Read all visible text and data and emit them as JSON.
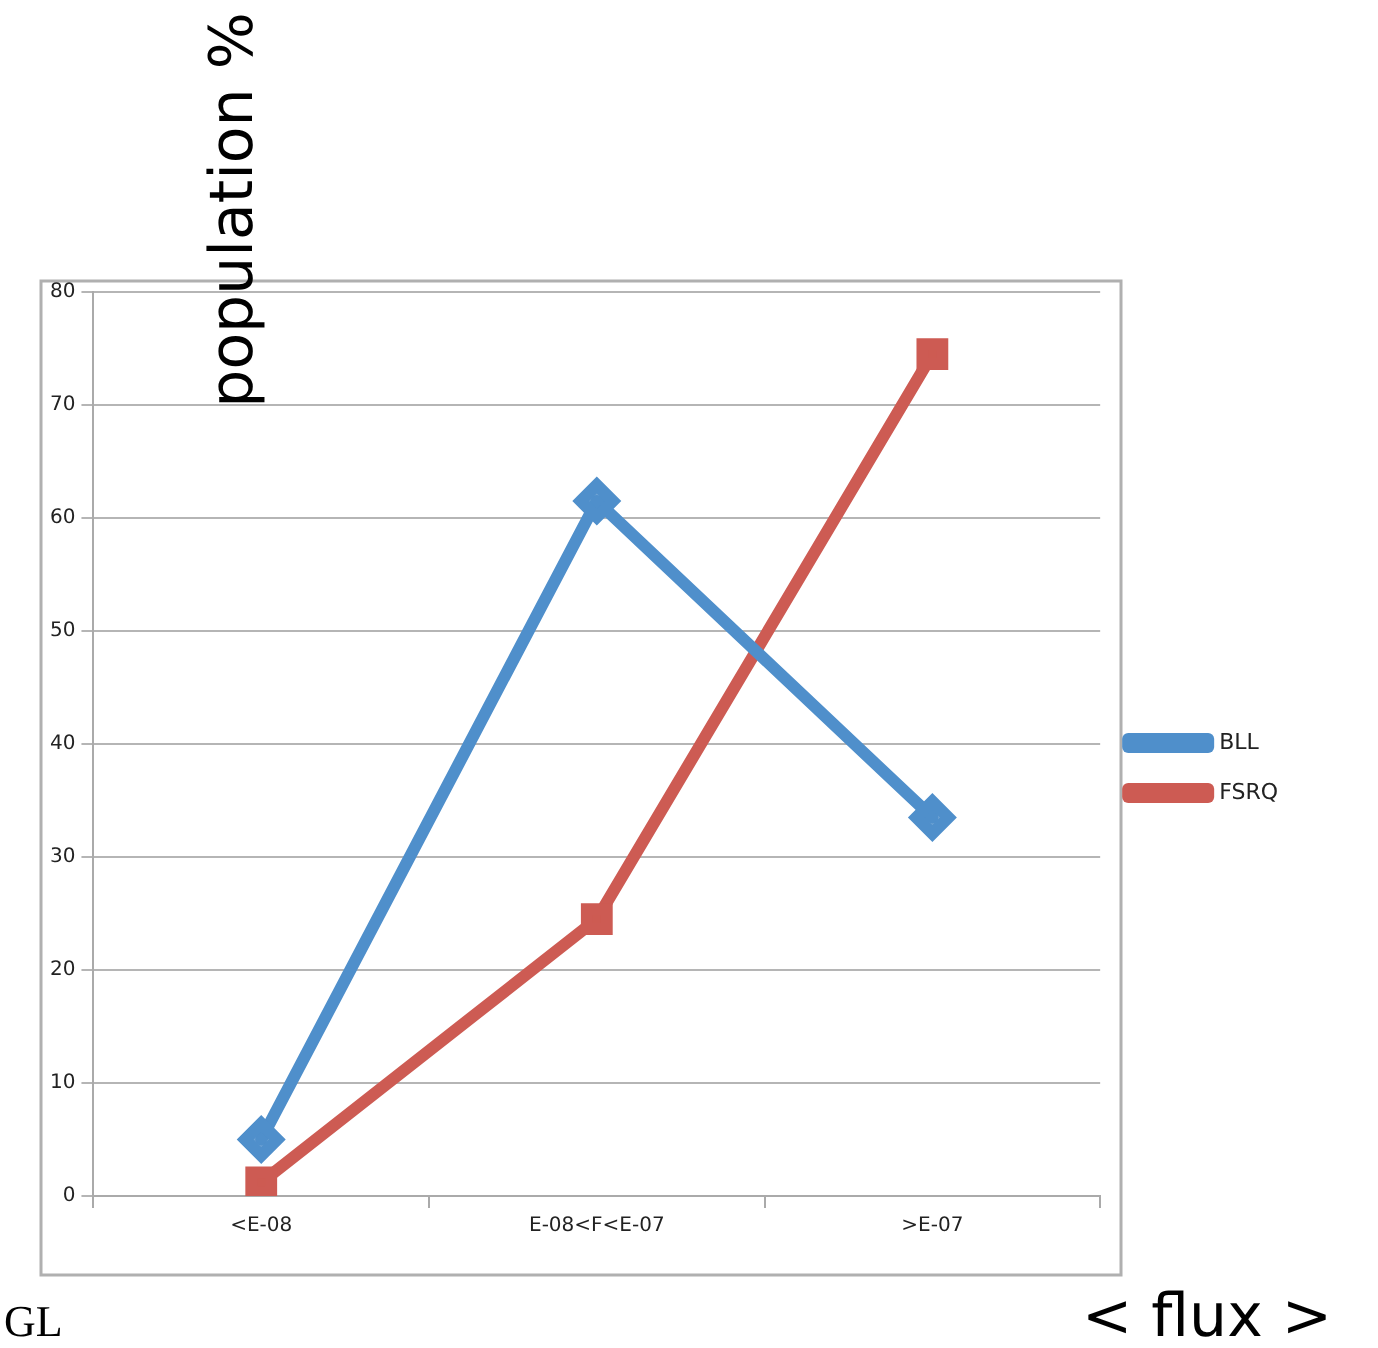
{
  "chart_data": {
    "type": "line",
    "ylabel": "population %",
    "xlabel": "< flux >",
    "categories": [
      "<E-08",
      "E-08<F<E-07",
      ">E-07"
    ],
    "series": [
      {
        "name": "BLL",
        "color": "#4f8fcb",
        "values": [
          5,
          61.5,
          33.5
        ],
        "marker": "diamond"
      },
      {
        "name": "FSRQ",
        "color": "#cd5b53",
        "values": [
          1.2,
          24.5,
          74.5
        ],
        "marker": "square"
      }
    ],
    "ylim": [
      0,
      80
    ],
    "yticks": [
      0,
      10,
      20,
      30,
      40,
      50,
      60,
      70,
      80
    ],
    "grid": "y",
    "legend": "right",
    "annotations": [
      "GL"
    ]
  }
}
